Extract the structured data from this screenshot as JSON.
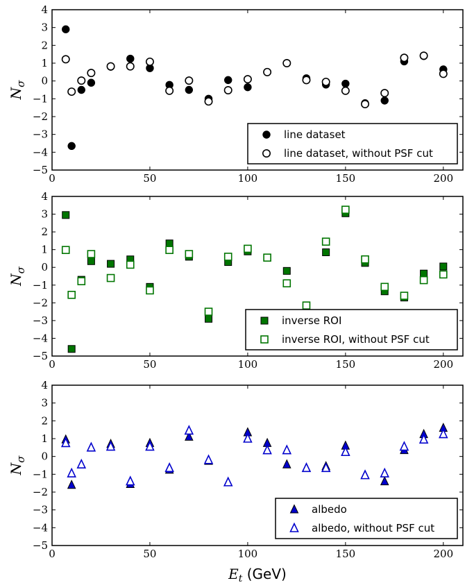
{
  "chart_data": [
    {
      "type": "scatter",
      "ylabel": "Nσ",
      "xlim": [
        0,
        210
      ],
      "ylim": [
        -5,
        4
      ],
      "xticks": [
        0,
        50,
        100,
        150,
        200
      ],
      "yticks": [
        -5,
        -4,
        -3,
        -2,
        -1,
        0,
        1,
        2,
        3,
        4
      ],
      "legend_position": "lower-right",
      "marker": "circle",
      "color": "#000000",
      "series": [
        {
          "name": "line dataset",
          "filled": true,
          "x": [
            7,
            10,
            15,
            20,
            30,
            40,
            50,
            60,
            70,
            80,
            90,
            100,
            110,
            120,
            130,
            140,
            150,
            160,
            170,
            180,
            190,
            200
          ],
          "y": [
            2.9,
            -3.65,
            -0.5,
            -0.1,
            0.8,
            1.25,
            0.72,
            -0.22,
            -0.5,
            -1.0,
            0.05,
            -0.35,
            0.5,
            1.0,
            0.15,
            -0.2,
            -0.15,
            -1.25,
            -1.1,
            1.1,
            1.4,
            0.65
          ]
        },
        {
          "name": "line dataset, without PSF cut",
          "filled": false,
          "x": [
            7,
            10,
            15,
            20,
            30,
            40,
            50,
            60,
            70,
            80,
            90,
            100,
            110,
            120,
            130,
            140,
            150,
            160,
            170,
            180,
            190,
            200
          ],
          "y": [
            1.22,
            -0.6,
            0.02,
            0.45,
            0.82,
            0.82,
            1.08,
            -0.55,
            0.02,
            -1.15,
            -0.52,
            0.1,
            0.5,
            1.0,
            0.05,
            -0.05,
            -0.55,
            -1.3,
            -0.68,
            1.3,
            1.42,
            0.4
          ]
        }
      ]
    },
    {
      "type": "scatter",
      "ylabel": "Nσ",
      "xlim": [
        0,
        210
      ],
      "ylim": [
        -5,
        4
      ],
      "xticks": [
        0,
        50,
        100,
        150,
        200
      ],
      "yticks": [
        -5,
        -4,
        -3,
        -2,
        -1,
        0,
        1,
        2,
        3,
        4
      ],
      "legend_position": "lower-right",
      "marker": "square",
      "color": "#007500",
      "series": [
        {
          "name": "inverse ROI",
          "filled": true,
          "x": [
            7,
            10,
            15,
            20,
            30,
            40,
            50,
            60,
            70,
            80,
            90,
            100,
            110,
            120,
            130,
            140,
            150,
            160,
            170,
            180,
            190,
            200
          ],
          "y": [
            2.95,
            -4.6,
            -0.7,
            0.35,
            0.2,
            0.45,
            -1.1,
            1.35,
            0.6,
            -2.9,
            0.3,
            0.9,
            0.55,
            -0.2,
            -2.2,
            0.85,
            3.05,
            0.25,
            -1.35,
            -1.7,
            -0.35,
            0.05
          ]
        },
        {
          "name": "inverse ROI, without PSF cut",
          "filled": false,
          "x": [
            7,
            10,
            15,
            20,
            30,
            40,
            50,
            60,
            70,
            80,
            90,
            100,
            110,
            120,
            130,
            140,
            150,
            160,
            170,
            180,
            190,
            200
          ],
          "y": [
            0.98,
            -1.55,
            -0.78,
            0.75,
            -0.6,
            0.15,
            -1.3,
            0.98,
            0.75,
            -2.5,
            0.6,
            1.05,
            0.55,
            -0.9,
            -2.15,
            1.45,
            3.25,
            0.45,
            -1.1,
            -1.6,
            -0.72,
            -0.4
          ]
        }
      ]
    },
    {
      "type": "scatter",
      "ylabel": "Nσ",
      "xlabel": "Et (GeV)",
      "xlim": [
        0,
        210
      ],
      "ylim": [
        -5,
        4
      ],
      "xticks": [
        0,
        50,
        100,
        150,
        200
      ],
      "yticks": [
        -5,
        -4,
        -3,
        -2,
        -1,
        0,
        1,
        2,
        3,
        4
      ],
      "legend_position": "lower-right",
      "marker": "triangle",
      "color": "#0000cc",
      "series": [
        {
          "name": "albedo",
          "filled": true,
          "x": [
            7,
            10,
            15,
            20,
            30,
            40,
            50,
            60,
            70,
            80,
            90,
            100,
            110,
            120,
            130,
            140,
            150,
            160,
            170,
            180,
            190,
            200
          ],
          "y": [
            0.95,
            -1.6,
            -0.45,
            0.5,
            0.7,
            -1.55,
            0.75,
            -0.75,
            1.1,
            -0.25,
            -1.45,
            1.35,
            0.75,
            -0.45,
            -0.65,
            -0.55,
            0.6,
            -1.05,
            -1.4,
            0.35,
            1.25,
            1.6
          ]
        },
        {
          "name": "albedo, without PSF cut",
          "filled": false,
          "x": [
            7,
            10,
            15,
            20,
            30,
            40,
            50,
            60,
            70,
            80,
            90,
            100,
            110,
            120,
            130,
            140,
            150,
            160,
            170,
            180,
            190,
            200
          ],
          "y": [
            0.75,
            -0.95,
            -0.45,
            0.5,
            0.55,
            -1.4,
            0.55,
            -0.65,
            1.45,
            -0.2,
            -1.45,
            1.0,
            0.35,
            0.35,
            -0.65,
            -0.65,
            0.25,
            -1.05,
            -0.95,
            0.55,
            0.95,
            1.25
          ]
        }
      ]
    }
  ]
}
